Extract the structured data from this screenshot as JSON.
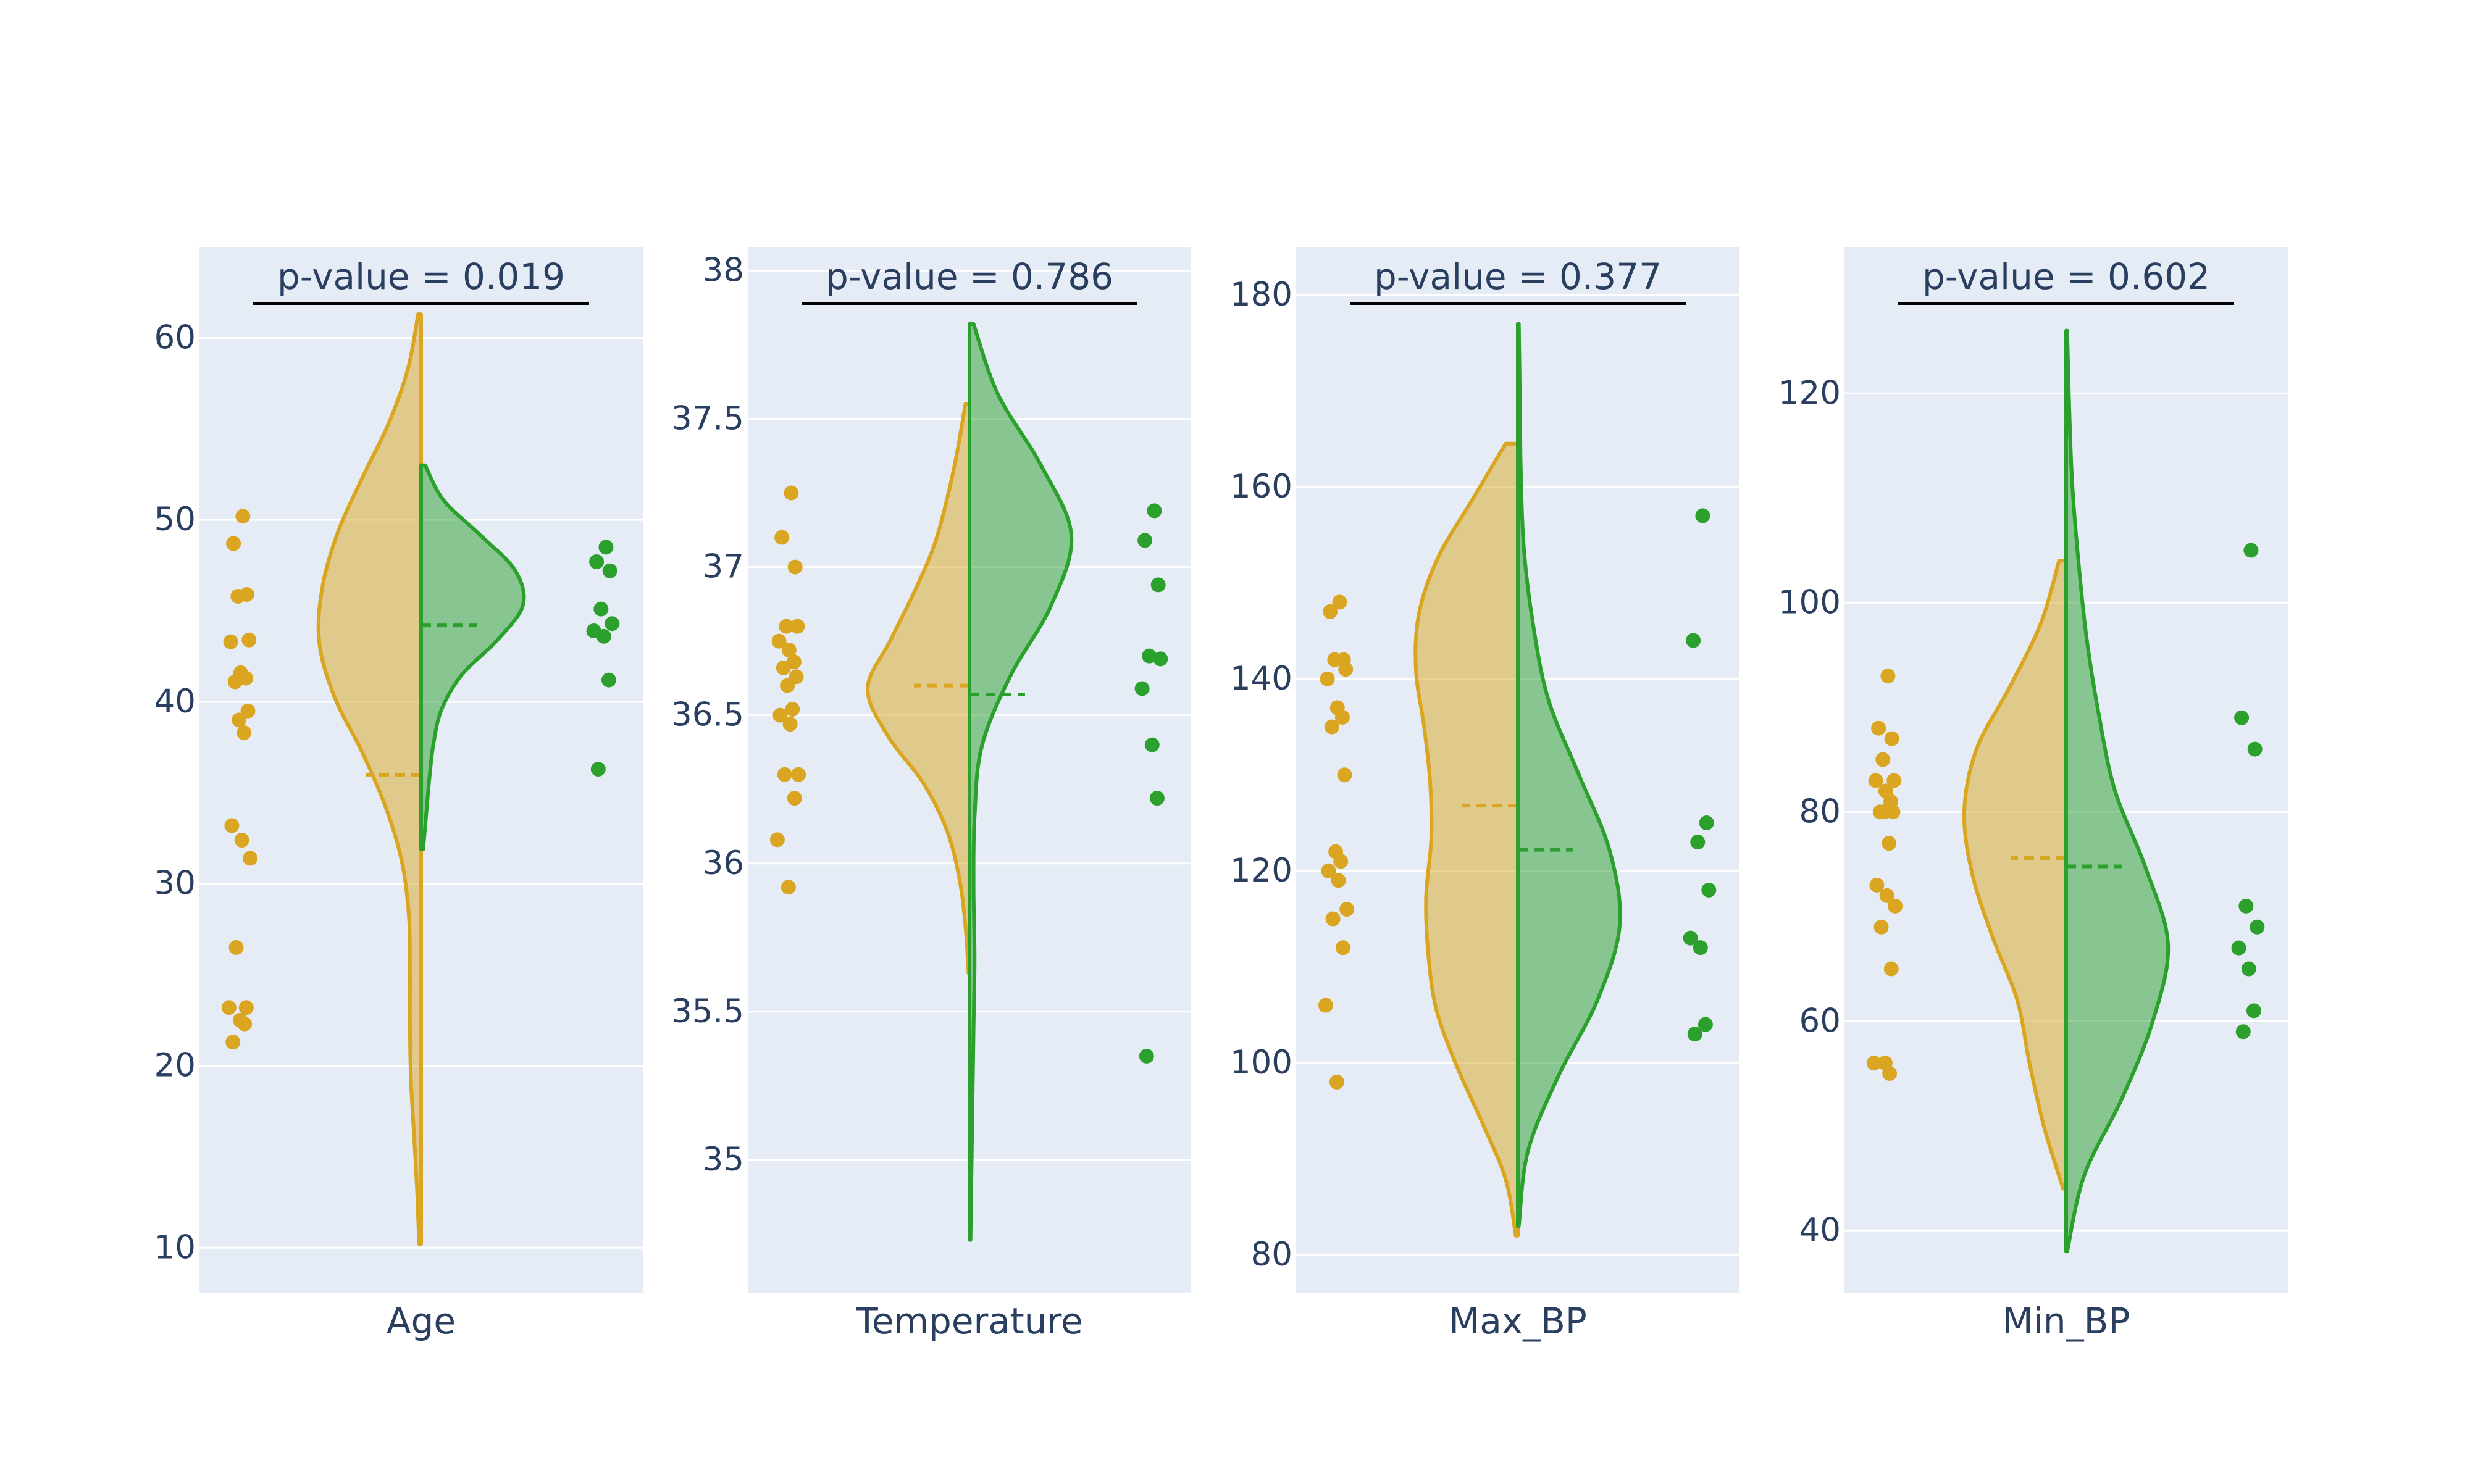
{
  "colors": {
    "group_a": "#DAA520",
    "group_b": "#2CA02C",
    "plot_bg": "#E5ECF6",
    "grid": "#FFFFFF",
    "text": "#2a3f5f"
  },
  "chart_data": [
    {
      "type": "violin",
      "xlabel": "Age",
      "annotation": "p-value = 0.019",
      "ylim": [
        7.5,
        65
      ],
      "ticks": [
        10,
        20,
        30,
        40,
        50,
        60
      ],
      "tick_labels": [
        "10",
        "20",
        "30",
        "40",
        "50",
        "60"
      ],
      "series": [
        {
          "values": [
            50.2,
            48.7,
            45.9,
            45.8,
            43.4,
            43.3,
            41.6,
            41.3,
            41.1,
            39.5,
            39.0,
            38.3,
            33.2,
            32.4,
            31.4,
            26.5,
            23.2,
            23.2,
            22.5,
            22.3,
            21.3
          ],
          "mean": 36.0,
          "kde_min": 10.2,
          "kde_max": 61.3,
          "density": [
            0.02,
            0.04,
            0.07,
            0.1,
            0.11,
            0.11,
            0.12,
            0.19,
            0.35,
            0.58,
            0.85,
            1.0,
            0.97,
            0.82,
            0.58,
            0.32,
            0.13,
            0.03
          ]
        },
        {
          "values": [
            48.5,
            47.7,
            47.2,
            45.1,
            44.3,
            43.9,
            43.6,
            41.2,
            36.3
          ],
          "mean": 44.2,
          "kde_min": 31.9,
          "kde_max": 53.0,
          "density": [
            0.02,
            0.05,
            0.08,
            0.12,
            0.2,
            0.4,
            0.75,
            1.0,
            0.92,
            0.58,
            0.22,
            0.04
          ]
        }
      ]
    },
    {
      "type": "violin",
      "xlabel": "Temperature",
      "annotation": "p-value = 0.786",
      "ylim": [
        34.55,
        38.08
      ],
      "ticks": [
        35,
        35.5,
        36,
        36.5,
        37,
        37.5,
        38
      ],
      "tick_labels": [
        "35",
        "35.5",
        "36",
        "36.5",
        "37",
        "37.5",
        "38"
      ],
      "series": [
        {
          "values": [
            37.25,
            37.1,
            37.0,
            36.8,
            36.8,
            36.75,
            36.72,
            36.68,
            36.66,
            36.63,
            36.6,
            36.52,
            36.5,
            36.47,
            36.3,
            36.3,
            36.22,
            36.08,
            35.92
          ],
          "mean": 36.6,
          "kde_min": 35.63,
          "kde_max": 37.55,
          "density": [
            0.01,
            0.04,
            0.1,
            0.22,
            0.45,
            0.8,
            1.0,
            0.78,
            0.55,
            0.35,
            0.22,
            0.12,
            0.04
          ]
        },
        {
          "values": [
            37.19,
            37.09,
            36.94,
            36.7,
            36.69,
            36.59,
            36.4,
            36.22,
            35.35
          ],
          "mean": 36.57,
          "kde_min": 34.73,
          "kde_max": 37.82,
          "density": [
            0.01,
            0.02,
            0.03,
            0.04,
            0.05,
            0.04,
            0.05,
            0.12,
            0.4,
            0.8,
            1.0,
            0.7,
            0.28,
            0.04
          ]
        }
      ]
    },
    {
      "type": "violin",
      "xlabel": "Max_BP",
      "annotation": "p-value = 0.377",
      "ylim": [
        76,
        185
      ],
      "ticks": [
        80,
        100,
        120,
        140,
        160,
        180
      ],
      "tick_labels": [
        "80",
        "100",
        "120",
        "140",
        "160",
        "180"
      ],
      "series": [
        {
          "values": [
            148,
            147,
            142,
            142,
            141,
            140,
            137,
            136,
            135,
            130,
            122,
            121,
            120,
            119,
            116,
            115,
            112,
            106,
            98
          ],
          "mean": 126.8,
          "kde_min": 82.0,
          "kde_max": 164.5,
          "density": [
            0.02,
            0.12,
            0.35,
            0.6,
            0.8,
            0.88,
            0.9,
            0.85,
            0.86,
            0.92,
            1.0,
            0.97,
            0.78,
            0.45,
            0.12
          ]
        },
        {
          "values": [
            157,
            144,
            125,
            123,
            118,
            113,
            112,
            104,
            103
          ],
          "mean": 122.2,
          "kde_min": 83.0,
          "kde_max": 177.0,
          "density": [
            0.01,
            0.1,
            0.4,
            0.78,
            1.0,
            0.9,
            0.6,
            0.3,
            0.15,
            0.06,
            0.03,
            0.02,
            0.01
          ]
        }
      ]
    },
    {
      "type": "violin",
      "xlabel": "Min_BP",
      "annotation": "p-value = 0.602",
      "ylim": [
        34,
        134
      ],
      "ticks": [
        40,
        60,
        80,
        100,
        120
      ],
      "tick_labels": [
        "40",
        "60",
        "80",
        "100",
        "120"
      ],
      "series": [
        {
          "values": [
            93,
            88,
            87,
            85,
            83,
            83,
            82,
            81,
            80,
            80,
            80,
            77,
            73,
            72,
            71,
            69,
            65,
            56,
            56,
            55
          ],
          "mean": 75.6,
          "kde_min": 44.0,
          "kde_max": 104.0,
          "density": [
            0.03,
            0.22,
            0.36,
            0.48,
            0.72,
            0.92,
            1.0,
            0.88,
            0.55,
            0.25,
            0.07
          ]
        },
        {
          "values": [
            105,
            89,
            86,
            71,
            69,
            67,
            65,
            61,
            59
          ],
          "mean": 74.8,
          "kde_min": 38.0,
          "kde_max": 126.0,
          "density": [
            0.01,
            0.18,
            0.55,
            0.85,
            1.0,
            0.78,
            0.48,
            0.32,
            0.2,
            0.12,
            0.06,
            0.03,
            0.01
          ]
        }
      ]
    }
  ]
}
